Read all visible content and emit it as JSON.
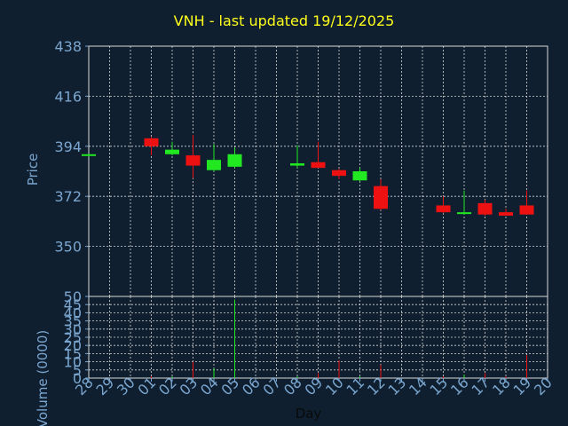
{
  "title": "VNH - last updated 19/12/2025",
  "chart_data": [
    {
      "type": "candlestick",
      "ylabel": "Price",
      "ylim": [
        328,
        438
      ],
      "y_ticks": [
        "438",
        "416",
        "394",
        "372",
        "350"
      ],
      "y_tick_values": [
        438,
        416,
        394,
        372,
        350
      ],
      "grid": true,
      "up_color": "#22e822",
      "down_color": "#ee1111",
      "candles": [
        {
          "day": "28",
          "open": 390.0,
          "high": 390.5,
          "low": 389.5,
          "close": 390.5
        },
        {
          "day": "01",
          "open": 397.5,
          "high": 398.0,
          "low": 390.0,
          "close": 394.0
        },
        {
          "day": "02",
          "open": 390.5,
          "high": 396.0,
          "low": 390.0,
          "close": 392.5
        },
        {
          "day": "03",
          "open": 390.0,
          "high": 399.0,
          "low": 380.0,
          "close": 385.5
        },
        {
          "day": "04",
          "open": 383.5,
          "high": 395.0,
          "low": 383.0,
          "close": 388.0
        },
        {
          "day": "05",
          "open": 385.0,
          "high": 393.5,
          "low": 384.5,
          "close": 390.5
        },
        {
          "day": "08",
          "open": 385.5,
          "high": 394.5,
          "low": 384.5,
          "close": 386.5
        },
        {
          "day": "09",
          "open": 387.0,
          "high": 396.0,
          "low": 384.5,
          "close": 384.5
        },
        {
          "day": "10",
          "open": 383.5,
          "high": 384.0,
          "low": 379.5,
          "close": 381.0
        },
        {
          "day": "11",
          "open": 379.0,
          "high": 384.5,
          "low": 378.5,
          "close": 383.0
        },
        {
          "day": "12",
          "open": 376.5,
          "high": 379.5,
          "low": 366.0,
          "close": 366.5
        },
        {
          "day": "15",
          "open": 368.0,
          "high": 372.0,
          "low": 364.5,
          "close": 365.0
        },
        {
          "day": "16",
          "open": 364.5,
          "high": 374.5,
          "low": 364.0,
          "close": 365.0
        },
        {
          "day": "17",
          "open": 369.0,
          "high": 370.5,
          "low": 363.5,
          "close": 364.0
        },
        {
          "day": "18",
          "open": 365.0,
          "high": 366.5,
          "low": 363.5,
          "close": 363.5
        },
        {
          "day": "19",
          "open": 368.0,
          "high": 374.5,
          "low": 364.0,
          "close": 364.0
        }
      ]
    },
    {
      "type": "bar",
      "ylabel": "Volume (0000)",
      "xlabel": "Day",
      "ylim": [
        0,
        50
      ],
      "y_ticks": [
        "0",
        "5",
        "10",
        "15",
        "20",
        "25",
        "30",
        "35",
        "40",
        "45",
        "50"
      ],
      "y_tick_values": [
        0,
        5,
        10,
        15,
        20,
        25,
        30,
        35,
        40,
        45,
        50
      ],
      "categories": [
        "28",
        "29",
        "30",
        "01",
        "02",
        "03",
        "04",
        "05",
        "06",
        "07",
        "08",
        "09",
        "10",
        "11",
        "12",
        "13",
        "14",
        "15",
        "16",
        "17",
        "18",
        "19",
        "20"
      ],
      "values": [
        0,
        0,
        0,
        1,
        1,
        10,
        6,
        48,
        0,
        0,
        1,
        3,
        11,
        1,
        8,
        0,
        0,
        1,
        2,
        3,
        1,
        14,
        0
      ],
      "bar_colors": [
        "",
        "",
        "",
        "#ee1111",
        "#22e822",
        "#ee1111",
        "#22e822",
        "#22e822",
        "",
        "",
        "#22e822",
        "#ee1111",
        "#ee1111",
        "#22e822",
        "#ee1111",
        "",
        "",
        "#ee1111",
        "#22e822",
        "#ee1111",
        "#ee1111",
        "#ee1111",
        ""
      ]
    }
  ]
}
